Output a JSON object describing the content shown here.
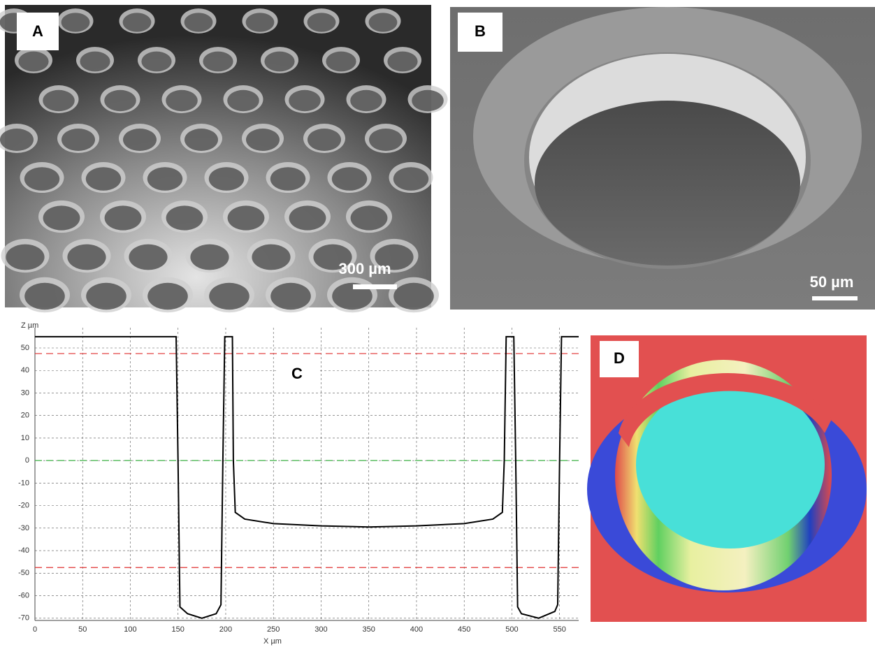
{
  "panels": {
    "a": {
      "label": "A",
      "scale_bar": "300 µm"
    },
    "b": {
      "label": "B",
      "scale_bar": "50 µm"
    },
    "d": {
      "label": "D"
    }
  },
  "chart_data": {
    "type": "line",
    "label": "C",
    "x_label": "X µm",
    "y_label": "Z µm",
    "xlim": [
      0,
      570
    ],
    "ylim": [
      -71,
      59
    ],
    "xticks": [
      0,
      50,
      100,
      150,
      200,
      250,
      300,
      350,
      400,
      450,
      500,
      550
    ],
    "yticks": [
      50,
      40,
      30,
      20,
      10,
      0,
      -10,
      -20,
      -30,
      -40,
      -50,
      -60,
      -70
    ],
    "grid": true,
    "x": [
      0,
      148,
      150,
      152,
      160,
      175,
      190,
      195,
      197,
      199,
      207,
      208,
      210,
      220,
      250,
      300,
      350,
      400,
      450,
      480,
      490,
      492,
      494,
      502,
      504,
      506,
      510,
      528,
      545,
      548,
      550,
      552,
      570
    ],
    "series": [
      {
        "color": "#000000",
        "values": [
          55,
          55,
          0,
          -65,
          -68,
          -70,
          -68,
          -64,
          0,
          55,
          55,
          0,
          -23,
          -26,
          -28,
          -29,
          -29.5,
          -29,
          -28,
          -26,
          -23,
          0,
          55,
          55,
          0,
          -65,
          -68,
          -70,
          -67,
          -64,
          0,
          55,
          55
        ]
      }
    ],
    "reference_lines": [
      {
        "value": 47.5,
        "color": "#e03030"
      },
      {
        "value": -47.5,
        "color": "#e03030"
      },
      {
        "value": 0,
        "color": "#3cb043"
      }
    ]
  }
}
